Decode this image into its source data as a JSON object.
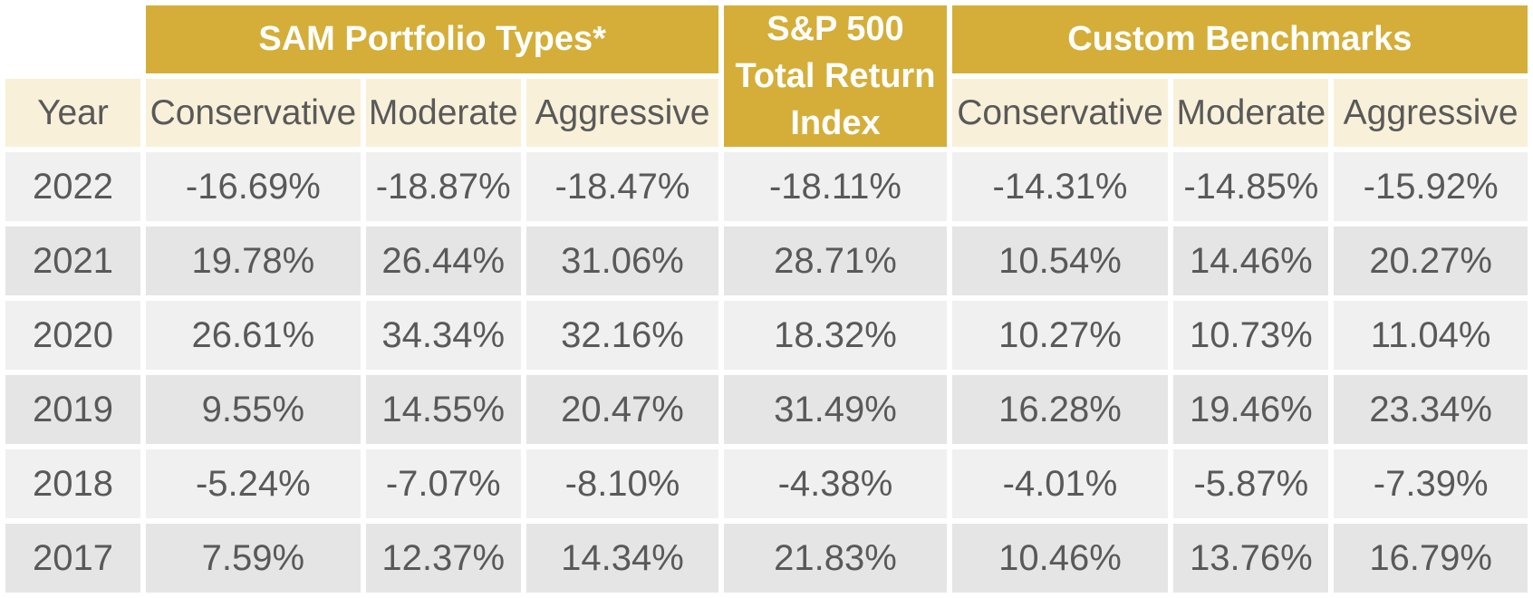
{
  "headers": {
    "group1": "SAM Portfolio Types*",
    "sp500_line1": "S&P 500",
    "sp500_line2": "Total Return",
    "sp500_line3": "Index",
    "group2": "Custom Benchmarks",
    "year": "Year",
    "sam_cols": [
      "Conservative",
      "Moderate",
      "Aggressive"
    ],
    "custom_cols": [
      "Conservative",
      "Moderate",
      "Aggressive"
    ]
  },
  "rows": [
    {
      "year": "2022",
      "sam": [
        "-16.69%",
        "-18.87%",
        "-18.47%"
      ],
      "sp500": "-18.11%",
      "custom": [
        "-14.31%",
        "-14.85%",
        "-15.92%"
      ]
    },
    {
      "year": "2021",
      "sam": [
        "19.78%",
        "26.44%",
        "31.06%"
      ],
      "sp500": "28.71%",
      "custom": [
        "10.54%",
        "14.46%",
        "20.27%"
      ]
    },
    {
      "year": "2020",
      "sam": [
        "26.61%",
        "34.34%",
        "32.16%"
      ],
      "sp500": "18.32%",
      "custom": [
        "10.27%",
        "10.73%",
        "11.04%"
      ]
    },
    {
      "year": "2019",
      "sam": [
        "9.55%",
        "14.55%",
        "20.47%"
      ],
      "sp500": "31.49%",
      "custom": [
        "16.28%",
        "19.46%",
        "23.34%"
      ]
    },
    {
      "year": "2018",
      "sam": [
        "-5.24%",
        "-7.07%",
        "-8.10%"
      ],
      "sp500": "-4.38%",
      "custom": [
        "-4.01%",
        "-5.87%",
        "-7.39%"
      ]
    },
    {
      "year": "2017",
      "sam": [
        "7.59%",
        "12.37%",
        "14.34%"
      ],
      "sp500": "21.83%",
      "custom": [
        "10.46%",
        "13.76%",
        "16.79%"
      ]
    }
  ],
  "colors": {
    "gold": "#d4ae38",
    "cream": "#f8f0d9",
    "row_light": "#f0f0f0",
    "row_dark": "#e5e5e5",
    "text": "#595959"
  }
}
